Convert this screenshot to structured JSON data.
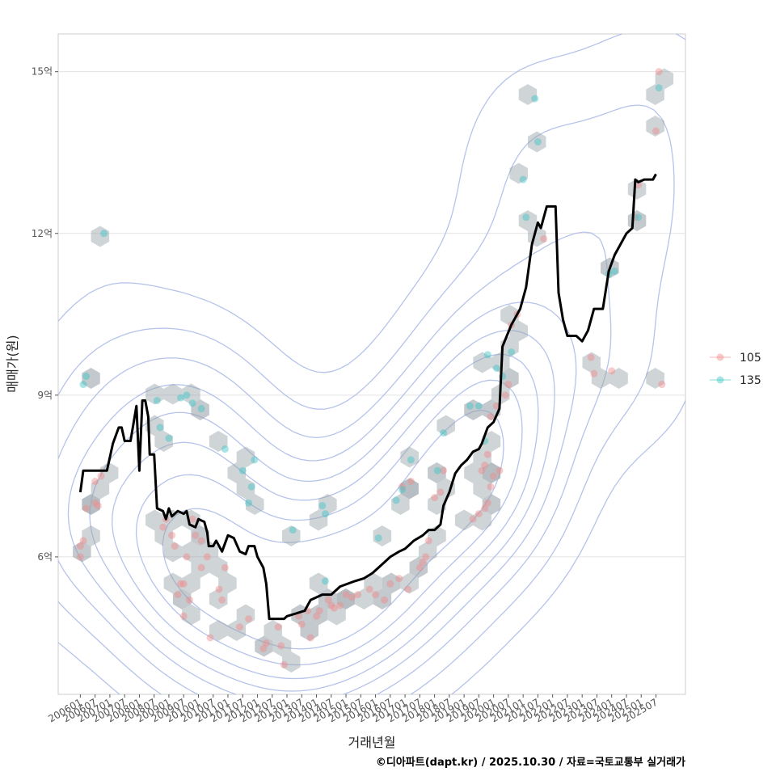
{
  "chart_data": {
    "type": "scatter",
    "title": "",
    "xlabel": "거래년월",
    "ylabel": "매매가(원)",
    "x_tick_labels": [
      "200601",
      "200607",
      "200701",
      "200707",
      "200801",
      "200807",
      "200901",
      "200907",
      "201001",
      "201007",
      "201101",
      "201107",
      "201201",
      "201207",
      "201301",
      "201307",
      "201401",
      "201407",
      "201501",
      "201507",
      "201601",
      "201607",
      "201701",
      "201707",
      "201801",
      "201807",
      "201901",
      "201907",
      "202001",
      "202007",
      "202101",
      "202107",
      "202201",
      "202207",
      "202301",
      "202307",
      "202401",
      "202407",
      "202501",
      "202507"
    ],
    "y_ticks": [
      {
        "value": 6,
        "label": "6억"
      },
      {
        "value": 9,
        "label": "9억"
      },
      {
        "value": 12,
        "label": "12억"
      },
      {
        "value": 15,
        "label": "15억"
      }
    ],
    "xlim": [
      2005.25,
      2026.5
    ],
    "ylim": [
      3.45,
      15.7
    ],
    "grid": true,
    "legend": {
      "position": "right",
      "items": [
        {
          "label": "105",
          "color": "#f08a8a"
        },
        {
          "label": "135",
          "color": "#3cc6c6"
        }
      ]
    },
    "series": [
      {
        "name": "105",
        "color": "#f08a8a",
        "points": [
          [
            2006.0,
            6.2
          ],
          [
            2006.0,
            6.0
          ],
          [
            2006.1,
            6.3
          ],
          [
            2006.2,
            6.9
          ],
          [
            2006.5,
            7.0
          ],
          [
            2006.6,
            6.95
          ],
          [
            2006.5,
            7.4
          ],
          [
            2006.7,
            7.5
          ],
          [
            2008.8,
            6.55
          ],
          [
            2008.9,
            6.7
          ],
          [
            2009.1,
            6.4
          ],
          [
            2009.2,
            6.2
          ],
          [
            2009.3,
            5.3
          ],
          [
            2009.4,
            5.5
          ],
          [
            2009.5,
            5.5
          ],
          [
            2009.5,
            4.9
          ],
          [
            2009.6,
            6.0
          ],
          [
            2009.7,
            5.2
          ],
          [
            2009.8,
            6.7
          ],
          [
            2009.9,
            6.4
          ],
          [
            2010.1,
            6.3
          ],
          [
            2010.1,
            5.8
          ],
          [
            2010.3,
            6.0
          ],
          [
            2010.7,
            5.4
          ],
          [
            2010.8,
            5.2
          ],
          [
            2010.9,
            5.8
          ],
          [
            2010.4,
            4.5
          ],
          [
            2011.4,
            4.7
          ],
          [
            2011.7,
            4.85
          ],
          [
            2012.2,
            4.3
          ],
          [
            2012.3,
            4.4
          ],
          [
            2012.7,
            4.7
          ],
          [
            2012.8,
            4.35
          ],
          [
            2012.9,
            4.0
          ],
          [
            2013.4,
            4.9
          ],
          [
            2013.5,
            4.75
          ],
          [
            2013.7,
            5.0
          ],
          [
            2013.8,
            4.5
          ],
          [
            2014.0,
            4.9
          ],
          [
            2014.1,
            5.0
          ],
          [
            2014.4,
            5.2
          ],
          [
            2014.5,
            5.1
          ],
          [
            2014.6,
            5.05
          ],
          [
            2014.8,
            5.1
          ],
          [
            2015.0,
            5.3
          ],
          [
            2015.2,
            5.25
          ],
          [
            2015.4,
            5.3
          ],
          [
            2015.8,
            5.4
          ],
          [
            2016.0,
            5.3
          ],
          [
            2016.3,
            5.2
          ],
          [
            2016.5,
            5.5
          ],
          [
            2016.8,
            5.6
          ],
          [
            2017.1,
            5.4
          ],
          [
            2016.9,
            7.3
          ],
          [
            2017.2,
            7.4
          ],
          [
            2017.5,
            5.8
          ],
          [
            2017.6,
            5.9
          ],
          [
            2017.7,
            6.0
          ],
          [
            2017.8,
            6.3
          ],
          [
            2018.0,
            7.1
          ],
          [
            2018.2,
            7.2
          ],
          [
            2018.3,
            7.6
          ],
          [
            2019.3,
            6.7
          ],
          [
            2019.5,
            6.8
          ],
          [
            2019.7,
            6.9
          ],
          [
            2019.8,
            7.0
          ],
          [
            2019.9,
            7.3
          ],
          [
            2019.6,
            7.6
          ],
          [
            2019.7,
            7.7
          ],
          [
            2019.8,
            7.9
          ],
          [
            2020.0,
            7.5
          ],
          [
            2020.2,
            7.6
          ],
          [
            2019.9,
            8.6
          ],
          [
            2020.1,
            8.8
          ],
          [
            2020.4,
            9.0
          ],
          [
            2020.5,
            9.2
          ],
          [
            2020.6,
            10.3
          ],
          [
            2020.8,
            10.5
          ],
          [
            2021.7,
            11.9
          ],
          [
            2023.3,
            9.7
          ],
          [
            2023.4,
            9.4
          ],
          [
            2024.0,
            9.45
          ],
          [
            2024.8,
            12.3
          ],
          [
            2024.9,
            12.9
          ],
          [
            2025.5,
            13.9
          ],
          [
            2025.6,
            15.0
          ],
          [
            2025.7,
            9.2
          ]
        ]
      },
      {
        "name": "135",
        "color": "#3cc6c6",
        "points": [
          [
            2006.1,
            9.2
          ],
          [
            2006.2,
            9.35
          ],
          [
            2006.8,
            12.0
          ],
          [
            2008.6,
            8.9
          ],
          [
            2008.7,
            8.4
          ],
          [
            2009.0,
            8.2
          ],
          [
            2009.4,
            8.95
          ],
          [
            2009.6,
            9.0
          ],
          [
            2009.8,
            8.85
          ],
          [
            2010.1,
            8.75
          ],
          [
            2010.9,
            8.0
          ],
          [
            2011.5,
            7.6
          ],
          [
            2011.7,
            7.0
          ],
          [
            2011.8,
            7.3
          ],
          [
            2011.9,
            7.8
          ],
          [
            2013.2,
            6.5
          ],
          [
            2014.2,
            6.95
          ],
          [
            2014.3,
            6.8
          ],
          [
            2014.3,
            5.55
          ],
          [
            2016.1,
            6.35
          ],
          [
            2016.7,
            7.05
          ],
          [
            2016.9,
            7.25
          ],
          [
            2017.2,
            7.8
          ],
          [
            2018.1,
            7.6
          ],
          [
            2018.3,
            8.3
          ],
          [
            2019.2,
            8.8
          ],
          [
            2019.5,
            8.8
          ],
          [
            2019.7,
            8.15
          ],
          [
            2019.8,
            9.75
          ],
          [
            2020.1,
            9.5
          ],
          [
            2020.3,
            9.35
          ],
          [
            2020.6,
            9.8
          ],
          [
            2021.4,
            14.5
          ],
          [
            2021.5,
            13.7
          ],
          [
            2021.0,
            13.0
          ],
          [
            2021.1,
            12.3
          ],
          [
            2023.9,
            11.25
          ],
          [
            2024.1,
            11.3
          ],
          [
            2024.9,
            12.3
          ],
          [
            2025.6,
            14.7
          ]
        ]
      }
    ],
    "trend_line": {
      "color": "#000000",
      "points": [
        [
          2006.0,
          7.2
        ],
        [
          2006.1,
          7.6
        ],
        [
          2006.9,
          7.6
        ],
        [
          2007.1,
          8.1
        ],
        [
          2007.3,
          8.4
        ],
        [
          2007.4,
          8.4
        ],
        [
          2007.5,
          8.15
        ],
        [
          2007.7,
          8.15
        ],
        [
          2007.9,
          8.8
        ],
        [
          2008.0,
          7.6
        ],
        [
          2008.1,
          8.9
        ],
        [
          2008.2,
          8.9
        ],
        [
          2008.3,
          8.6
        ],
        [
          2008.35,
          7.9
        ],
        [
          2008.5,
          7.9
        ],
        [
          2008.6,
          6.9
        ],
        [
          2008.8,
          6.85
        ],
        [
          2008.9,
          6.7
        ],
        [
          2009.0,
          6.9
        ],
        [
          2009.1,
          6.75
        ],
        [
          2009.3,
          6.85
        ],
        [
          2009.5,
          6.8
        ],
        [
          2009.6,
          6.85
        ],
        [
          2009.7,
          6.6
        ],
        [
          2009.9,
          6.55
        ],
        [
          2010.0,
          6.7
        ],
        [
          2010.2,
          6.65
        ],
        [
          2010.3,
          6.45
        ],
        [
          2010.35,
          6.2
        ],
        [
          2010.5,
          6.2
        ],
        [
          2010.6,
          6.3
        ],
        [
          2010.8,
          6.1
        ],
        [
          2011.0,
          6.4
        ],
        [
          2011.2,
          6.35
        ],
        [
          2011.4,
          6.1
        ],
        [
          2011.6,
          6.05
        ],
        [
          2011.7,
          6.2
        ],
        [
          2011.9,
          6.2
        ],
        [
          2012.0,
          6.0
        ],
        [
          2012.2,
          5.8
        ],
        [
          2012.3,
          5.5
        ],
        [
          2012.4,
          4.85
        ],
        [
          2012.6,
          4.85
        ],
        [
          2012.9,
          4.85
        ],
        [
          2013.0,
          4.9
        ],
        [
          2013.3,
          4.95
        ],
        [
          2013.6,
          5.0
        ],
        [
          2013.8,
          5.2
        ],
        [
          2014.2,
          5.3
        ],
        [
          2014.5,
          5.3
        ],
        [
          2014.8,
          5.45
        ],
        [
          2015.3,
          5.55
        ],
        [
          2015.6,
          5.6
        ],
        [
          2015.9,
          5.7
        ],
        [
          2016.3,
          5.9
        ],
        [
          2016.5,
          6.0
        ],
        [
          2016.8,
          6.1
        ],
        [
          2017.0,
          6.15
        ],
        [
          2017.3,
          6.3
        ],
        [
          2017.6,
          6.4
        ],
        [
          2017.8,
          6.5
        ],
        [
          2018.0,
          6.5
        ],
        [
          2018.2,
          6.6
        ],
        [
          2018.3,
          6.95
        ],
        [
          2018.5,
          7.2
        ],
        [
          2018.7,
          7.55
        ],
        [
          2018.9,
          7.7
        ],
        [
          2019.1,
          7.8
        ],
        [
          2019.3,
          7.95
        ],
        [
          2019.5,
          8.0
        ],
        [
          2019.6,
          8.1
        ],
        [
          2019.8,
          8.4
        ],
        [
          2020.0,
          8.5
        ],
        [
          2020.2,
          8.75
        ],
        [
          2020.3,
          9.9
        ],
        [
          2020.6,
          10.3
        ],
        [
          2020.9,
          10.6
        ],
        [
          2021.1,
          11.0
        ],
        [
          2021.3,
          11.8
        ],
        [
          2021.5,
          12.2
        ],
        [
          2021.6,
          12.1
        ],
        [
          2021.8,
          12.5
        ],
        [
          2022.1,
          12.5
        ],
        [
          2022.2,
          10.9
        ],
        [
          2022.35,
          10.4
        ],
        [
          2022.5,
          10.1
        ],
        [
          2022.8,
          10.1
        ],
        [
          2023.0,
          10.0
        ],
        [
          2023.2,
          10.2
        ],
        [
          2023.4,
          10.6
        ],
        [
          2023.7,
          10.6
        ],
        [
          2023.9,
          11.3
        ],
        [
          2024.1,
          11.6
        ],
        [
          2024.3,
          11.8
        ],
        [
          2024.5,
          12.0
        ],
        [
          2024.7,
          12.1
        ],
        [
          2024.8,
          13.0
        ],
        [
          2024.9,
          12.95
        ],
        [
          2025.1,
          13.0
        ],
        [
          2025.4,
          13.0
        ],
        [
          2025.5,
          13.1
        ]
      ]
    },
    "annotation_caption": "©디아파트(dapt.kr) / 2025.10.30 / 자료=국토교통부 실거래가"
  }
}
